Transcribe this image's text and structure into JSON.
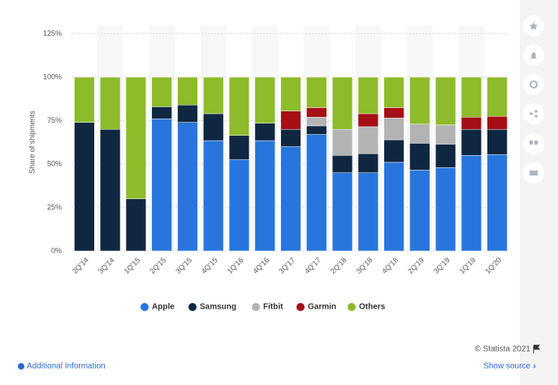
{
  "chart_data": {
    "type": "stacked-bar",
    "y_label": "Share of shipments",
    "categories": [
      "2Q'14",
      "3Q'14",
      "1Q'15",
      "2Q'15",
      "3Q'15",
      "4Q'15",
      "1Q'16",
      "4Q'16",
      "3Q'17",
      "4Q'17",
      "2Q'18",
      "3Q'18",
      "4Q'18",
      "2Q'19",
      "3Q'19",
      "1Q'19",
      "1Q'20"
    ],
    "series": [
      {
        "name": "Apple",
        "color": "#2876dd",
        "values": [
          0,
          0,
          0,
          76,
          74,
          63.5,
          52.5,
          63.5,
          60,
          67,
          45,
          45,
          51,
          46.5,
          48,
          55,
          55.5
        ]
      },
      {
        "name": "Samsung",
        "color": "#0f2741",
        "values": [
          74,
          70,
          30,
          7,
          10,
          15.5,
          14,
          10,
          10,
          5,
          10,
          11,
          13,
          15.5,
          13.5,
          15,
          14.5
        ]
      },
      {
        "name": "Fitbit",
        "color": "#b3b3b3",
        "values": [
          0,
          0,
          0,
          0,
          0,
          0,
          0,
          0,
          0,
          5,
          15,
          15.5,
          12.5,
          11,
          11,
          0,
          0
        ]
      },
      {
        "name": "Garmin",
        "color": "#a50f15",
        "values": [
          0,
          0,
          0,
          0,
          0,
          0,
          0,
          0,
          10.5,
          5.5,
          0,
          7.5,
          6,
          0,
          0,
          7,
          7.5
        ]
      },
      {
        "name": "Others",
        "color": "#8dbb2a",
        "values": [
          26,
          30,
          70,
          17,
          16,
          21,
          33.5,
          26.5,
          19.5,
          17.5,
          30,
          21,
          17.5,
          27,
          27.5,
          23,
          22.5
        ]
      }
    ],
    "ylim": [
      0,
      125
    ],
    "yticks": [
      {
        "value": 0,
        "label": "0%"
      },
      {
        "value": 25,
        "label": "25%"
      },
      {
        "value": 50,
        "label": "50%"
      },
      {
        "value": 75,
        "label": "75%"
      },
      {
        "value": 100,
        "label": "100%"
      },
      {
        "value": 125,
        "label": "125%"
      }
    ],
    "grid": true,
    "credit": "© Statista 2021",
    "info_link": "Additional Information",
    "source_link": "Show source"
  }
}
